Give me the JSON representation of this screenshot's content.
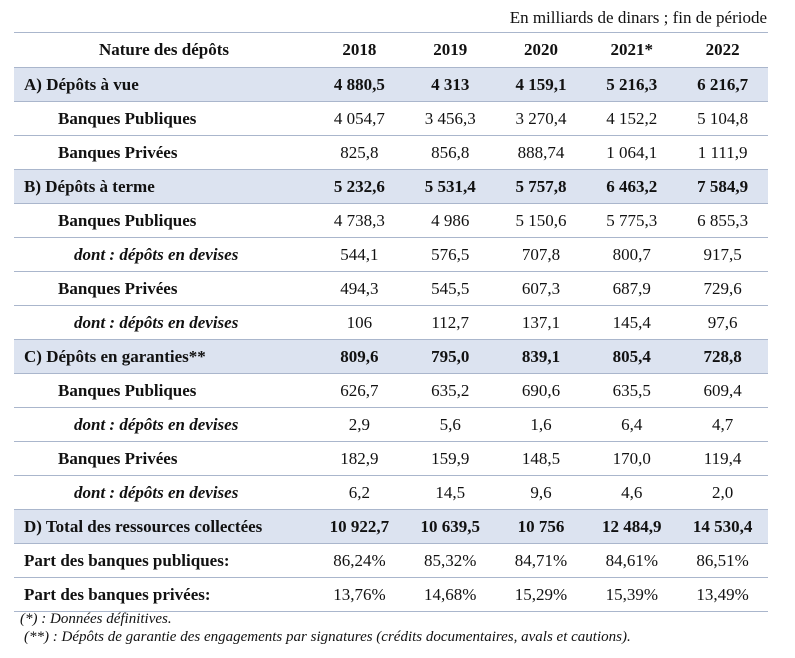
{
  "unit_note": "En milliards de dinars ; fin de période",
  "header": {
    "label": "Nature des dépôts",
    "years": [
      "2018",
      "2019",
      "2020",
      "2021*",
      "2022"
    ]
  },
  "rows": [
    {
      "type": "section",
      "label": "A) Dépôts à vue",
      "values": [
        "4 880,5",
        "4 313",
        "4 159,1",
        "5 216,3",
        "6 216,7"
      ]
    },
    {
      "type": "sub",
      "label": "Banques Publiques",
      "values": [
        "4 054,7",
        "3 456,3",
        "3 270,4",
        "4 152,2",
        "5 104,8"
      ]
    },
    {
      "type": "sub",
      "label": "Banques Privées",
      "values": [
        "825,8",
        "856,8",
        "888,74",
        "1 064,1",
        "1 111,9"
      ]
    },
    {
      "type": "section",
      "label": "B) Dépôts à terme",
      "values": [
        "5 232,6",
        "5 531,4",
        "5 757,8",
        "6 463,2",
        "7 584,9"
      ]
    },
    {
      "type": "sub",
      "label": "Banques Publiques",
      "values": [
        "4 738,3",
        "4 986",
        "5 150,6",
        "5 775,3",
        "6 855,3"
      ]
    },
    {
      "type": "devise",
      "label": "dont : dépôts en devises",
      "values": [
        "544,1",
        "576,5",
        "707,8",
        "800,7",
        "917,5"
      ]
    },
    {
      "type": "sub",
      "label": "Banques Privées",
      "values": [
        "494,3",
        "545,5",
        "607,3",
        "687,9",
        "729,6"
      ]
    },
    {
      "type": "devise",
      "label": "dont : dépôts en devises",
      "values": [
        "106",
        "112,7",
        "137,1",
        "145,4",
        "97,6"
      ]
    },
    {
      "type": "section",
      "label": "C) Dépôts en garanties**",
      "values": [
        "809,6",
        "795,0",
        "839,1",
        "805,4",
        "728,8"
      ]
    },
    {
      "type": "sub",
      "label": "Banques Publiques",
      "values": [
        "626,7",
        "635,2",
        "690,6",
        "635,5",
        "609,4"
      ]
    },
    {
      "type": "devise",
      "label": "dont : dépôts en devises",
      "values": [
        "2,9",
        "5,6",
        "1,6",
        "6,4",
        "4,7"
      ]
    },
    {
      "type": "sub",
      "label": "Banques Privées",
      "values": [
        "182,9",
        "159,9",
        "148,5",
        "170,0",
        "119,4"
      ]
    },
    {
      "type": "devise",
      "label": "dont : dépôts en devises",
      "values": [
        "6,2",
        "14,5",
        "9,6",
        "4,6",
        "2,0"
      ]
    },
    {
      "type": "section",
      "label": "D) Total des ressources collectées",
      "values": [
        "10 922,7",
        "10 639,5",
        "10 756",
        "12 484,9",
        "14 530,4"
      ]
    },
    {
      "type": "part",
      "label": "Part des banques publiques:",
      "values": [
        "86,24%",
        "85,32%",
        "84,71%",
        "84,61%",
        "86,51%"
      ]
    },
    {
      "type": "part",
      "label": "Part des  banques privées:",
      "values": [
        "13,76%",
        "14,68%",
        "15,29%",
        "15,39%",
        "13,49%"
      ]
    }
  ],
  "notes": [
    "(*) : Données définitives.",
    "(**) : Dépôts de garantie des engagements par signatures (crédits documentaires, avals et cautions)."
  ]
}
